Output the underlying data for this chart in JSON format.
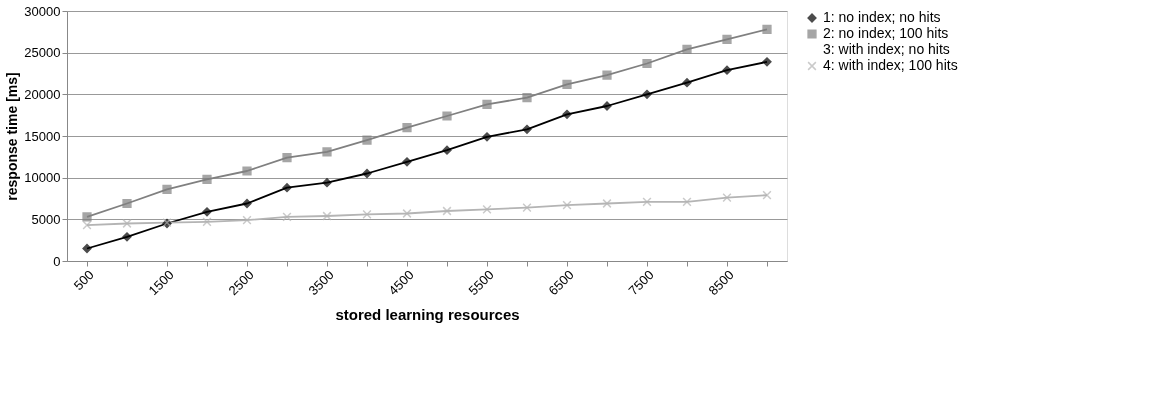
{
  "chart_data": {
    "type": "line",
    "xlabel": "stored learning resources",
    "ylabel": "response time [ms]",
    "categories": [
      "500",
      null,
      "1500",
      null,
      "2500",
      null,
      "3500",
      null,
      "4500",
      null,
      "5500",
      null,
      "6500",
      null,
      "7500",
      null,
      "8500",
      null
    ],
    "series": [
      {
        "name": "1: no index; no hits",
        "color": "#000000",
        "marker": "diamond",
        "values": [
          1500,
          2900,
          4500,
          5900,
          6900,
          8800,
          9400,
          10500,
          11900,
          13300,
          14900,
          15800,
          17600,
          18600,
          20000,
          21400,
          22900,
          23900
        ]
      },
      {
        "name": "2: no index; 100 hits",
        "color": "#808080",
        "marker": "square",
        "values": [
          5300,
          6900,
          8600,
          9800,
          10800,
          12400,
          13100,
          14500,
          16000,
          17400,
          18800,
          19600,
          21200,
          22300,
          23700,
          25400,
          26600,
          27800
        ]
      },
      {
        "name": "3: with index; no hits",
        "marker": "none",
        "values": [
          null,
          null,
          null,
          null,
          null,
          null,
          null,
          null,
          null,
          null,
          null,
          null,
          null,
          null,
          null,
          null,
          null,
          null
        ]
      },
      {
        "name": "4: with index; 100 hits",
        "color": "#b4b4b4",
        "marker": "cross",
        "values": [
          4300,
          4500,
          4600,
          4700,
          4900,
          5300,
          5400,
          5600,
          5700,
          6000,
          6200,
          6400,
          6700,
          6900,
          7100,
          7100,
          7600,
          7900
        ]
      }
    ],
    "ylim": [
      0,
      30000
    ],
    "yticks": [
      0,
      5000,
      10000,
      15000,
      20000,
      25000,
      30000
    ],
    "grid": "y",
    "legend": "right",
    "line_style": "solid"
  }
}
